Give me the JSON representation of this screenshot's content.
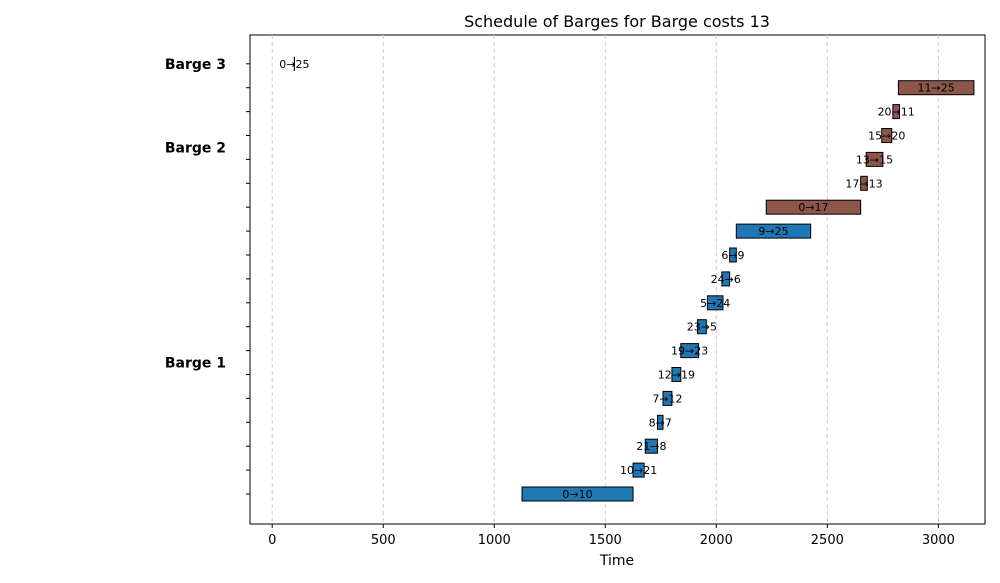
{
  "chart_data": {
    "type": "gantt",
    "title": "Schedule of Barges for Barge costs 13",
    "xlabel": "Time",
    "ylabel": "",
    "xlim": [
      -100,
      3210
    ],
    "xticks": [
      0,
      500,
      1000,
      1500,
      2000,
      2500,
      3000
    ],
    "grid": "vertical dashed",
    "barge_labels": [
      {
        "name": "Barge 3",
        "row": 18
      },
      {
        "name": "Barge 2",
        "row": 14.5
      },
      {
        "name": "Barge 1",
        "row": 5.5
      }
    ],
    "series": [
      {
        "name": "Barge 3",
        "color": "#000000",
        "tasks": [
          {
            "label": "0→25",
            "start": 100,
            "end": 100,
            "row": 18
          }
        ]
      },
      {
        "name": "Barge 2",
        "color": "#8c564b",
        "tasks": [
          {
            "label": "11→25",
            "start": 2820,
            "end": 3160,
            "row": 17
          },
          {
            "label": "20→11",
            "start": 2795,
            "end": 2825,
            "row": 16
          },
          {
            "label": "15→20",
            "start": 2745,
            "end": 2790,
            "row": 15
          },
          {
            "label": "13→15",
            "start": 2675,
            "end": 2750,
            "row": 14
          },
          {
            "label": "17→13",
            "start": 2650,
            "end": 2680,
            "row": 13
          },
          {
            "label": "0→17",
            "start": 2225,
            "end": 2650,
            "row": 12
          }
        ]
      },
      {
        "name": "Barge 1",
        "color": "#1f77b4",
        "tasks": [
          {
            "label": "9→25",
            "start": 2090,
            "end": 2425,
            "row": 11
          },
          {
            "label": "6→9",
            "start": 2060,
            "end": 2090,
            "row": 10
          },
          {
            "label": "24→6",
            "start": 2025,
            "end": 2060,
            "row": 9
          },
          {
            "label": "5→24",
            "start": 1960,
            "end": 2030,
            "row": 8
          },
          {
            "label": "23→5",
            "start": 1915,
            "end": 1955,
            "row": 7
          },
          {
            "label": "19→23",
            "start": 1840,
            "end": 1920,
            "row": 6
          },
          {
            "label": "12→19",
            "start": 1800,
            "end": 1840,
            "row": 5
          },
          {
            "label": "7→12",
            "start": 1760,
            "end": 1800,
            "row": 4
          },
          {
            "label": "8→7",
            "start": 1735,
            "end": 1760,
            "row": 3
          },
          {
            "label": "21→8",
            "start": 1680,
            "end": 1735,
            "row": 2
          },
          {
            "label": "10→21",
            "start": 1625,
            "end": 1675,
            "row": 1
          },
          {
            "label": "0→10",
            "start": 1125,
            "end": 1625,
            "row": 0
          }
        ]
      }
    ]
  }
}
